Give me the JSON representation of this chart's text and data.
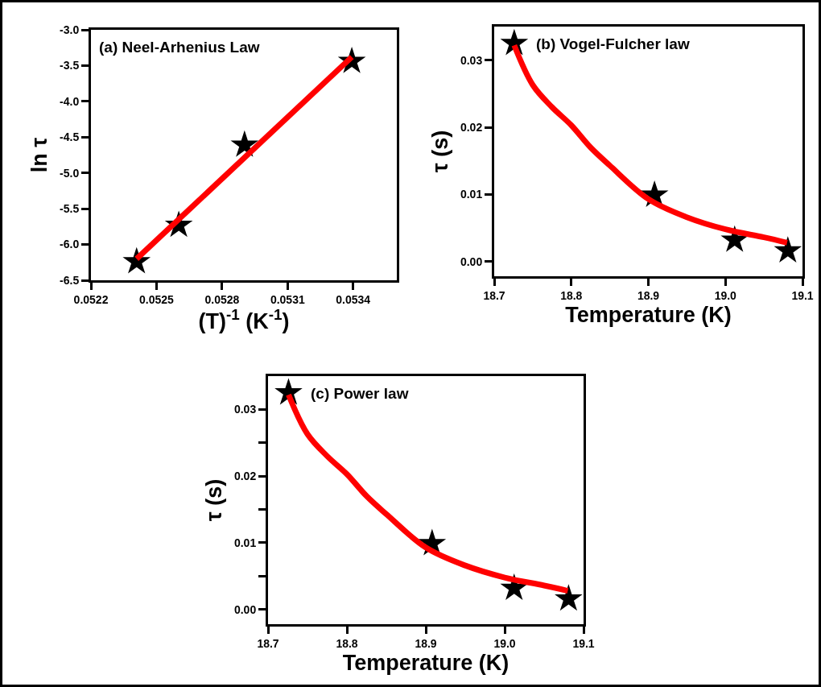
{
  "chart_data": [
    {
      "type": "scatter",
      "xlabel": "(T)$^{-1}$ (K$^{-1}$)",
      "ylabel": "ln τ",
      "annotations": [
        "(a) Neel-Arhenius Law"
      ],
      "xlim": [
        0.0522,
        0.0536
      ],
      "ylim": [
        -6.5,
        -3.0
      ],
      "xticks": [
        0.0522,
        0.0525,
        0.0528,
        0.0531,
        0.0534
      ],
      "yticks": [
        {
          "value": -6.5,
          "label": "-6.5"
        },
        {
          "value": -6.0,
          "label": "-6.0"
        },
        {
          "value": -5.5,
          "label": "-5.5"
        },
        {
          "value": -5.0,
          "label": "-5.0"
        },
        {
          "value": -4.5,
          "label": "-4.5"
        },
        {
          "value": -4.0,
          "label": "-4.0"
        },
        {
          "value": -3.5,
          "label": "-3.5"
        },
        {
          "value": -3.0,
          "label": "-3.0"
        }
      ],
      "grid": false,
      "series": [
        {
          "marker": "star",
          "color": "#000000",
          "x": [
            0.052409,
            0.052602,
            0.052903,
            0.053394
          ],
          "values": [
            -6.24,
            -5.73,
            -4.61,
            -3.44
          ]
        },
        {
          "type": "line",
          "color": "#ff0000",
          "line_style": "solid",
          "x": [
            0.052409,
            0.053394
          ],
          "values": [
            -6.2,
            -3.38
          ]
        }
      ]
    },
    {
      "type": "scatter",
      "xlabel": "Temperature (K)",
      "ylabel": "τ (s)",
      "annotations": [
        "(b) Vogel-Fulcher law"
      ],
      "xlim": [
        18.7,
        19.1
      ],
      "ylim": [
        -0.0022,
        0.035
      ],
      "xticks": [
        18.7,
        18.8,
        18.9,
        {
          "value": 19.0,
          "label": "19.0"
        },
        19.1
      ],
      "yticks": [
        {
          "value": 0,
          "label": "0.00"
        },
        {
          "value": 0.01,
          "label": "0.01"
        },
        {
          "value": 0.02,
          "label": "0.02"
        },
        {
          "value": 0.03,
          "label": "0.03"
        }
      ],
      "grid": false,
      "series": [
        {
          "marker": "star",
          "color": "#000000",
          "x": [
            18.726,
            18.908,
            19.012,
            19.081
          ],
          "values": [
            0.0325,
            0.0099,
            0.0032,
            0.0016
          ]
        },
        {
          "type": "line",
          "color": "#ff0000",
          "line_style": "solid",
          "x": [
            18.726,
            18.75,
            18.775,
            18.8,
            18.825,
            18.85,
            18.9,
            18.95,
            19.0,
            19.05,
            19.08
          ],
          "values": [
            0.0322,
            0.0263,
            0.023,
            0.0203,
            0.017,
            0.0143,
            0.0093,
            0.0066,
            0.0048,
            0.0036,
            0.0028
          ]
        }
      ]
    },
    {
      "type": "scatter",
      "xlabel": "Temperature (K)",
      "ylabel": "τ (s)",
      "annotations": [
        "(c) Power law"
      ],
      "xlim": [
        18.7,
        19.1
      ],
      "ylim": [
        -0.0022,
        0.035
      ],
      "xticks": [
        18.7,
        18.8,
        18.9,
        {
          "value": 19.0,
          "label": "19.0"
        },
        19.1
      ],
      "yticks": [
        {
          "value": 0,
          "label": "0.00"
        },
        {
          "value": 0.005,
          "label": null
        },
        {
          "value": 0.01,
          "label": "0.01"
        },
        {
          "value": 0.015,
          "label": null
        },
        {
          "value": 0.02,
          "label": "0.02"
        },
        {
          "value": 0.025,
          "label": null
        },
        {
          "value": 0.03,
          "label": "0.03"
        }
      ],
      "grid": false,
      "series": [
        {
          "marker": "star",
          "color": "#000000",
          "x": [
            18.726,
            18.908,
            19.012,
            19.081
          ],
          "values": [
            0.0325,
            0.0099,
            0.0032,
            0.0016
          ]
        },
        {
          "type": "line",
          "color": "#ff0000",
          "line_style": "solid",
          "x": [
            18.726,
            18.75,
            18.775,
            18.8,
            18.825,
            18.85,
            18.9,
            18.95,
            19.0,
            19.05,
            19.08
          ],
          "values": [
            0.0322,
            0.0263,
            0.023,
            0.0203,
            0.017,
            0.0143,
            0.0093,
            0.0066,
            0.0048,
            0.0036,
            0.0028
          ]
        }
      ]
    }
  ]
}
